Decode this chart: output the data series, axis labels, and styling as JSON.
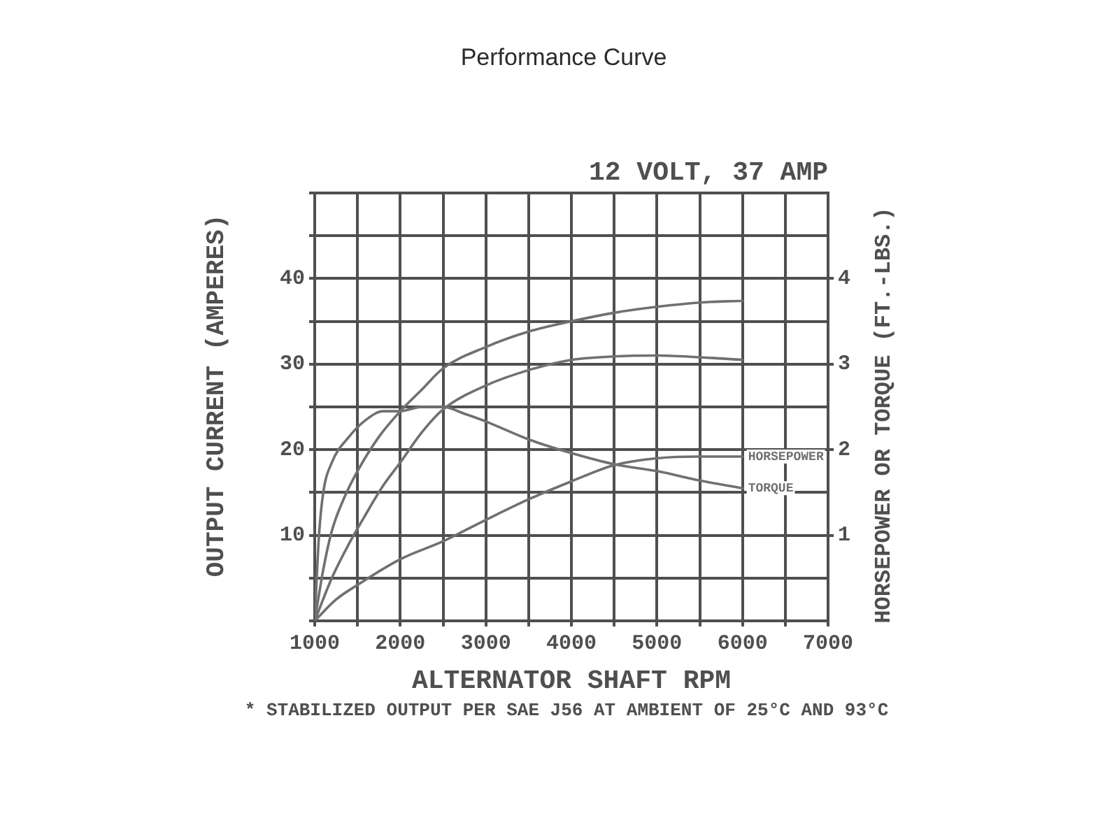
{
  "chart_data": {
    "type": "line",
    "title": "Performance Curve",
    "subtitle": "12 VOLT, 37 AMP",
    "xlabel": "ALTERNATOR SHAFT RPM",
    "ylabel": "OUTPUT CURRENT (AMPERES)",
    "y2label": "HORSEPOWER OR TORQUE (FT.-LBS.)",
    "annotations": [
      "* STABILIZED OUTPUT PER SAE J56 AT AMBIENT OF 25°C AND 93°C"
    ],
    "series": [
      {
        "color": "#707070",
        "x": [
          1000,
          1100,
          1200,
          1350,
          1500,
          1750,
          2000,
          2250,
          2500,
          3000,
          3500,
          4000,
          4500,
          5000,
          5500,
          6000
        ],
        "values": [
          0,
          6,
          10.5,
          14.5,
          17.5,
          21.5,
          24.5,
          27,
          29.5,
          32,
          33.8,
          35,
          36,
          36.7,
          37.2,
          37.4
        ]
      },
      {
        "color": "#707070",
        "x": [
          1000,
          1200,
          1400,
          1600,
          1800,
          2000,
          2250,
          2500,
          3000,
          3500,
          4000,
          4500,
          5000,
          5500,
          6000
        ],
        "values": [
          0,
          5,
          9,
          12.5,
          15.8,
          18.5,
          22,
          24.7,
          27.5,
          29.3,
          30.5,
          30.9,
          31,
          30.8,
          30.5
        ]
      },
      {
        "name": "HORSEPOWER",
        "axis": "y2",
        "color": "#707070",
        "x": [
          1000,
          1250,
          1500,
          2000,
          2500,
          3000,
          3500,
          4000,
          4500,
          5000,
          5500,
          6000
        ],
        "values": [
          0,
          0.25,
          0.42,
          0.72,
          0.93,
          1.18,
          1.42,
          1.63,
          1.82,
          1.9,
          1.92,
          1.92
        ]
      },
      {
        "name": "TORQUE",
        "axis": "y2",
        "color": "#707070",
        "x": [
          1000,
          1050,
          1100,
          1200,
          1400,
          1600,
          1800,
          2000,
          2250,
          2500,
          2750,
          3000,
          3500,
          4000,
          4500,
          5000,
          5500,
          6000
        ],
        "values": [
          0,
          1,
          1.5,
          1.85,
          2.15,
          2.35,
          2.45,
          2.45,
          2.5,
          2.5,
          2.42,
          2.33,
          2.12,
          1.96,
          1.83,
          1.75,
          1.64,
          1.55
        ]
      }
    ],
    "xlim": [
      1000,
      7000
    ],
    "xticks": [
      1000,
      {
        "value": 1500,
        "label": null
      },
      2000,
      {
        "value": 2500,
        "label": null
      },
      3000,
      {
        "value": 3500,
        "label": null
      },
      4000,
      {
        "value": 4500,
        "label": null
      },
      5000,
      {
        "value": 5500,
        "label": null
      },
      6000,
      {
        "value": 6500,
        "label": null
      },
      7000
    ],
    "ylim": [
      0,
      50
    ],
    "yticks": [
      {
        "value": 0,
        "label": null
      },
      {
        "value": 5,
        "label": null
      },
      10,
      {
        "value": 15,
        "label": null
      },
      20,
      {
        "value": 25,
        "label": null
      },
      30,
      {
        "value": 35,
        "label": null
      },
      40,
      {
        "value": 45,
        "label": null
      },
      {
        "value": 50,
        "label": null
      }
    ],
    "y2lim": [
      0,
      5
    ],
    "y2ticks": [
      1,
      2,
      3,
      4
    ],
    "grid": true
  }
}
